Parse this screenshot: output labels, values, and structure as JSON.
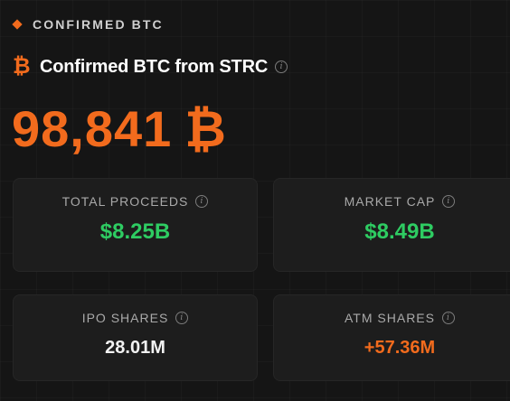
{
  "section": {
    "label": "CONFIRMED BTC"
  },
  "header": {
    "btc_symbol": "₿",
    "title": "Confirmed BTC from STRC",
    "info": "i"
  },
  "main": {
    "value": "98,841",
    "unit": "₿"
  },
  "cards": [
    {
      "label": "TOTAL PROCEEDS",
      "value": "$8.25B",
      "info": "i"
    },
    {
      "label": "MARKET CAP",
      "value": "$8.49B",
      "info": "i"
    },
    {
      "label": "IPO SHARES",
      "value": "28.01M",
      "info": "i"
    },
    {
      "label": "ATM SHARES",
      "value": "+57.36M",
      "info": "i"
    }
  ],
  "colors": {
    "accent": "#f26b1d",
    "positive": "#2ecc62",
    "background": "#151515",
    "card": "#1d1d1d"
  }
}
